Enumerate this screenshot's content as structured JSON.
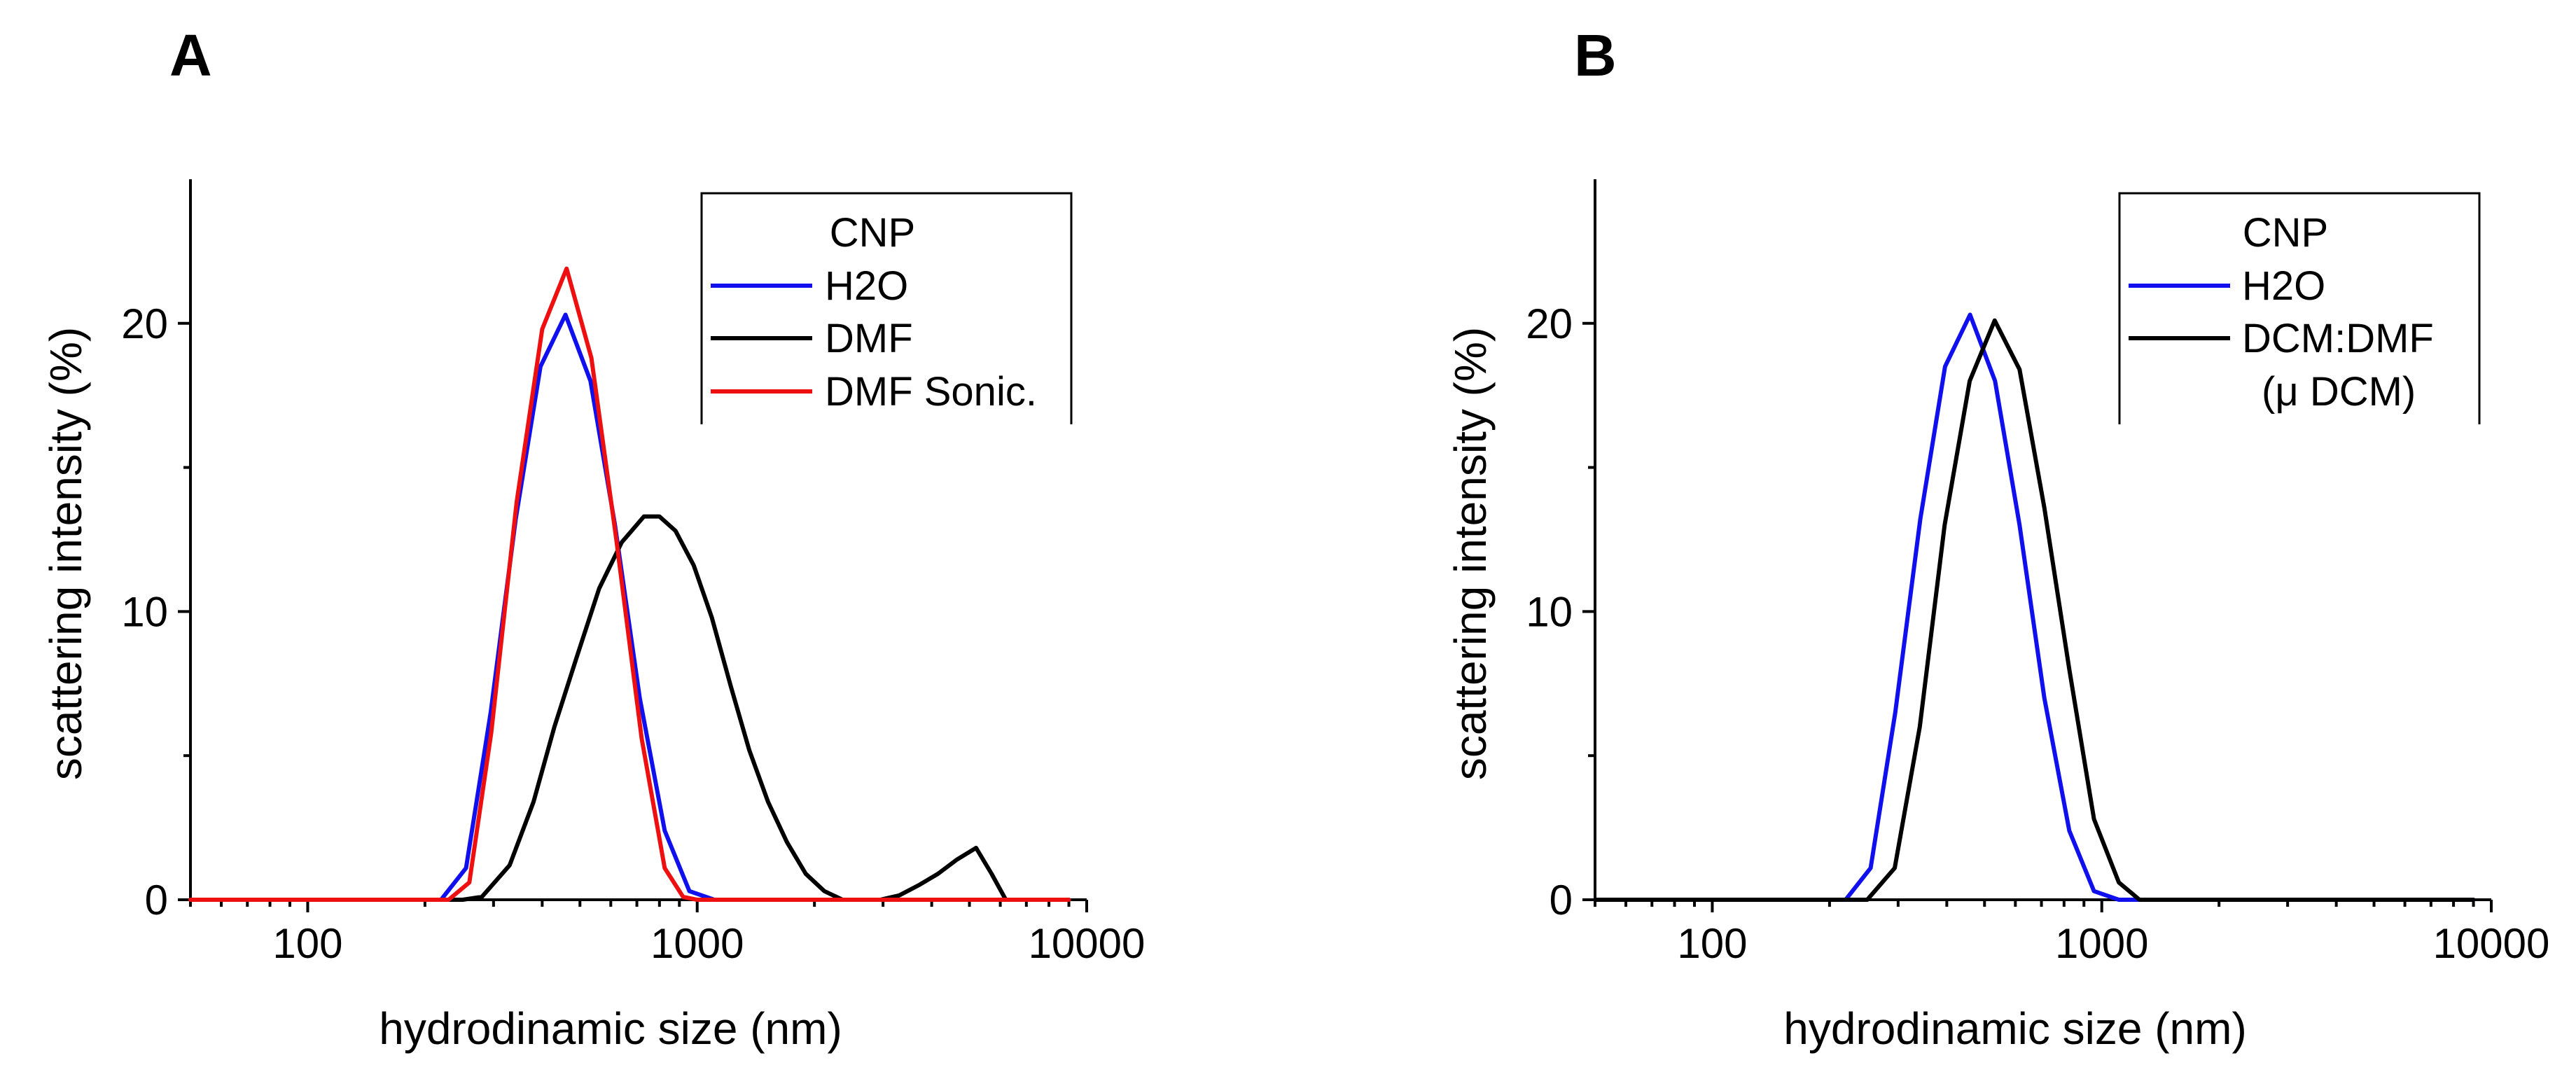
{
  "chart_data": [
    {
      "type": "line",
      "panel_label": "A",
      "xlabel": "hydrodinamic size (nm)",
      "ylabel": "scattering intensity (%)",
      "x_scale": "log",
      "xlim": [
        50,
        10000
      ],
      "ylim": [
        0,
        25
      ],
      "x_ticks": [
        100,
        1000,
        10000
      ],
      "x_tick_labels": [
        "100",
        "1000",
        "10000"
      ],
      "y_ticks": [
        0,
        10,
        20
      ],
      "y_tick_labels": [
        "0",
        "10",
        "20"
      ],
      "legend": {
        "title": "CNP",
        "placement": "top-right"
      },
      "series": [
        {
          "name": "H2O",
          "color": "#1010ee",
          "x": [
            50,
            100,
            200,
            220,
            255,
            295,
            342,
            396,
            459,
            532,
            615,
            712,
            825,
            955,
            1106,
            1281,
            2000,
            5000,
            9000
          ],
          "y": [
            0,
            0,
            0,
            0,
            1.1,
            6.5,
            13.2,
            18.5,
            20.3,
            18.0,
            13.0,
            7.0,
            2.4,
            0.3,
            0,
            0,
            0,
            0,
            0
          ]
        },
        {
          "name": "DMF",
          "color": "#000000",
          "x": [
            50,
            100,
            200,
            250,
            280,
            330,
            380,
            430,
            490,
            560,
            640,
            730,
            800,
            880,
            980,
            1090,
            1220,
            1360,
            1520,
            1700,
            1900,
            2120,
            2360,
            2640,
            2950,
            3300,
            3700,
            4150,
            4650,
            5200,
            5700,
            6200,
            6700,
            7500,
            9000
          ],
          "y": [
            0,
            0,
            0,
            0,
            0.1,
            1.2,
            3.4,
            6.0,
            8.4,
            10.8,
            12.4,
            13.3,
            13.3,
            12.8,
            11.6,
            9.8,
            7.4,
            5.2,
            3.4,
            2.0,
            0.9,
            0.3,
            0,
            0,
            0,
            0.15,
            0.5,
            0.9,
            1.4,
            1.8,
            0.9,
            0,
            0,
            0,
            0
          ]
        },
        {
          "name": "DMF Sonic.",
          "color": "#ee1010",
          "x": [
            50,
            100,
            200,
            230,
            260,
            296,
            344,
            400,
            462,
            535,
            620,
            720,
            825,
            920,
            1000,
            2000,
            9000
          ],
          "y": [
            0,
            0,
            0,
            0,
            0.6,
            5.8,
            13.8,
            19.8,
            21.9,
            18.8,
            12.5,
            5.6,
            1.1,
            0.1,
            0,
            0,
            0
          ]
        }
      ]
    },
    {
      "type": "line",
      "panel_label": "B",
      "xlabel": "hydrodinamic size (nm)",
      "ylabel": "scattering intensity (%)",
      "x_scale": "log",
      "xlim": [
        50,
        10000
      ],
      "ylim": [
        0,
        25
      ],
      "x_ticks": [
        100,
        1000,
        10000
      ],
      "x_tick_labels": [
        "100",
        "1000",
        "10000"
      ],
      "y_ticks": [
        0,
        10,
        20
      ],
      "y_tick_labels": [
        "0",
        "10",
        "20"
      ],
      "legend": {
        "title": "CNP",
        "placement": "top-right"
      },
      "series": [
        {
          "name": "H2O",
          "color": "#1010ee",
          "x": [
            50,
            100,
            200,
            220,
            255,
            295,
            342,
            396,
            459,
            532,
            615,
            712,
            825,
            955,
            1106,
            1281,
            2000,
            5000,
            9000
          ],
          "y": [
            0,
            0,
            0,
            0,
            1.1,
            6.5,
            13.2,
            18.5,
            20.3,
            18.0,
            13.0,
            7.0,
            2.4,
            0.3,
            0,
            0,
            0,
            0,
            0
          ]
        },
        {
          "name": "DCM:DMF",
          "name_line2": "(μ DCM)",
          "color": "#000000",
          "x": [
            50,
            100,
            200,
            250,
            294,
            341,
            395,
            458,
            531,
            615,
            712,
            825,
            955,
            1106,
            1250,
            2000,
            5000,
            9000
          ],
          "y": [
            0,
            0,
            0,
            0,
            1.1,
            6.0,
            13.0,
            18.0,
            20.1,
            18.4,
            13.6,
            8.0,
            2.8,
            0.6,
            0,
            0,
            0,
            0
          ]
        }
      ]
    }
  ]
}
